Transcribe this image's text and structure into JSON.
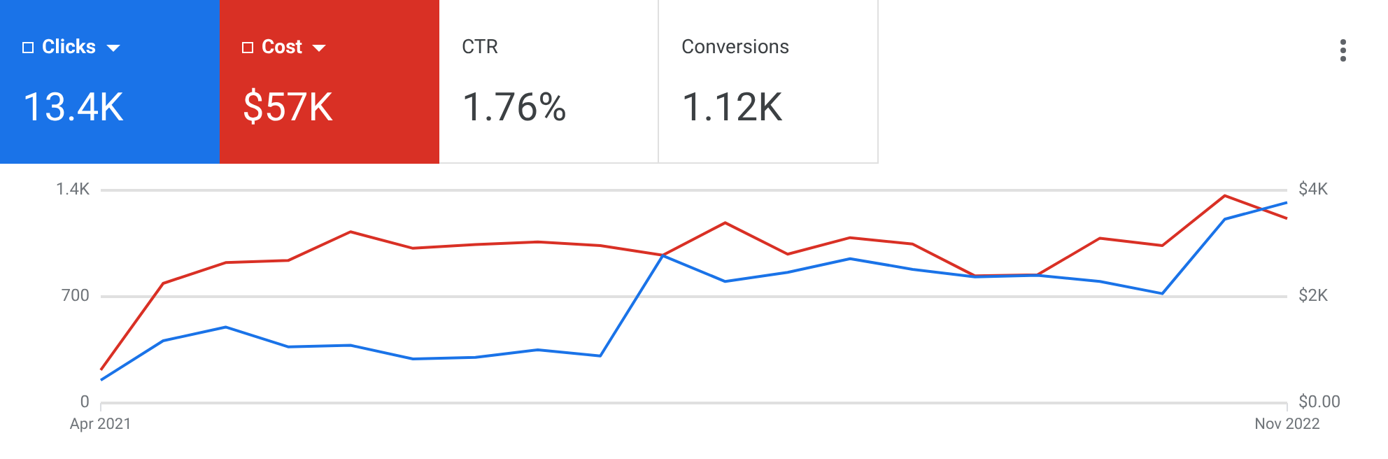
{
  "chart_data": {
    "type": "line",
    "categories": [
      "Apr 2021",
      null,
      null,
      null,
      null,
      null,
      null,
      null,
      null,
      null,
      null,
      null,
      null,
      null,
      null,
      null,
      null,
      null,
      null,
      "Nov 2022"
    ],
    "series": [
      {
        "name": "Clicks",
        "color": "#1a73e8",
        "values": [
          150,
          410,
          500,
          370,
          380,
          290,
          300,
          350,
          310,
          970,
          800,
          860,
          950,
          880,
          830,
          840,
          800,
          720,
          1210,
          1320
        ]
      },
      {
        "name": "Cost",
        "color": "#d93025",
        "axis": "y2",
        "values": [
          620,
          2250,
          2640,
          2680,
          3220,
          2910,
          2980,
          3030,
          2960,
          2780,
          3390,
          2800,
          3110,
          2990,
          2390,
          2410,
          3100,
          2960,
          3900,
          3470
        ]
      }
    ],
    "ylim": [
      0,
      1400
    ],
    "yticks": [
      0,
      700,
      {
        "value": 1400,
        "label": "1.4K"
      }
    ],
    "y2lim": [
      0,
      4000
    ],
    "y2ticks": [
      {
        "value": 0,
        "label": "$0.00"
      },
      {
        "value": 2000,
        "label": "$2K"
      },
      {
        "value": 4000,
        "label": "$4K"
      }
    ],
    "grid": "y",
    "legend": "top left",
    "marker": "none",
    "line_style": "solid",
    "annotations": [
      "13.4K",
      "$57K",
      "CTR",
      "1.76%",
      "Conversions",
      "1.12K"
    ]
  }
}
